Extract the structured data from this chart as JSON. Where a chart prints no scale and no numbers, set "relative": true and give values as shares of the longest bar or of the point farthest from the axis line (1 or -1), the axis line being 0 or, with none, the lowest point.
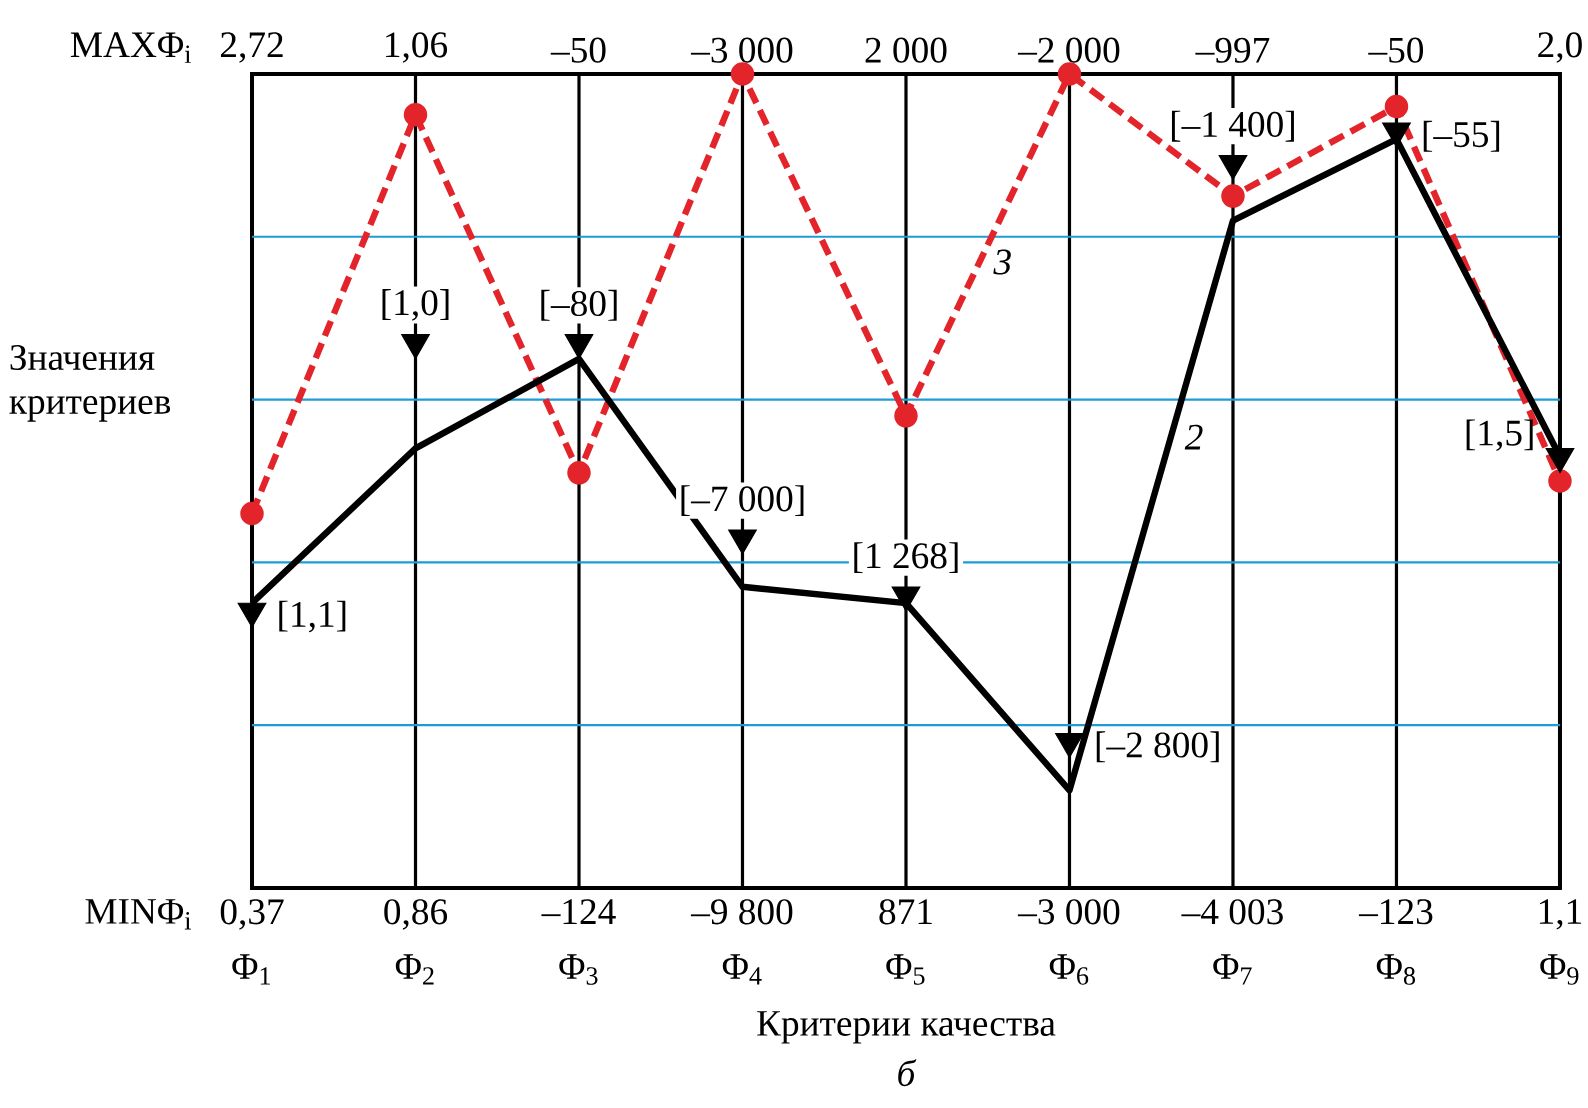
{
  "chart_data": {
    "type": "line",
    "relative": true,
    "grid": "x",
    "ylabel": "Значения критериев",
    "xlabel": "Критерии качества",
    "categories": [
      "Φ$_{1}$",
      "Φ$_{2}$",
      "Φ$_{3}$",
      "Φ$_{4}$",
      "Φ$_{5}$",
      "Φ$_{6}$",
      "Φ$_{7}$",
      "Φ$_{8}$",
      "Φ$_{9}$"
    ],
    "series": [
      {
        "name": "3",
        "color": "#e3242b",
        "marker": "circle",
        "line_style": "dashed",
        "values": [
          0.46,
          0.95,
          0.51,
          1.0,
          0.58,
          1.0,
          0.85,
          0.96,
          0.5
        ]
      },
      {
        "name": "2",
        "color": "#000000",
        "marker": "none",
        "line_style": "solid",
        "values": [
          0.35,
          0.54,
          0.65,
          0.37,
          0.35,
          0.12,
          0.82,
          0.92,
          0.53
        ]
      },
      {
        "type": "scatter",
        "color": "#000000",
        "marker": "triangle",
        "values": [
          0.34,
          0.67,
          0.67,
          0.43,
          0.36,
          0.18,
          0.89,
          0.93,
          0.53
        ]
      }
    ],
    "ref_lines": [
      {
        "axis": "y",
        "value": 0.2,
        "color": "#1e9bd7"
      },
      {
        "axis": "y",
        "value": 0.4,
        "color": "#1e9bd7"
      },
      {
        "axis": "y",
        "value": 0.6,
        "color": "#1e9bd7"
      },
      {
        "axis": "y",
        "value": 0.8,
        "color": "#1e9bd7"
      }
    ],
    "annotations": [
      "MAXΦ$_{i}$",
      "2,72",
      "1,06",
      "–50",
      "–3 000",
      "2 000",
      "–2 000",
      "–997",
      "–50",
      "2,0",
      "MINΦ$_{i}$",
      "0,37",
      "0,86",
      "–124",
      "–9 800",
      "871",
      "–3 000",
      "–4 003",
      "–123",
      "1,1",
      {
        "text": "[1,1]",
        "x": "Φ$_{1}$",
        "y": 0.34
      },
      {
        "text": "[1,0]",
        "x": "Φ$_{2}$",
        "y": 0.67
      },
      {
        "text": "[–80]",
        "x": "Φ$_{3}$",
        "y": 0.67
      },
      {
        "text": "[–7 000]",
        "x": "Φ$_{4}$",
        "y": 0.43
      },
      {
        "text": "[1 268]",
        "x": "Φ$_{5}$",
        "y": 0.36
      },
      {
        "text": "[–2 800]",
        "x": "Φ$_{6}$",
        "y": 0.18
      },
      {
        "text": "[–1 400]",
        "x": "Φ$_{7}$",
        "y": 0.89
      },
      {
        "text": "[–55]",
        "x": "Φ$_{8}$",
        "y": 0.93
      },
      {
        "text": "[1,5]",
        "x": "Φ$_{9}$",
        "y": 0.53
      },
      "б"
    ]
  }
}
